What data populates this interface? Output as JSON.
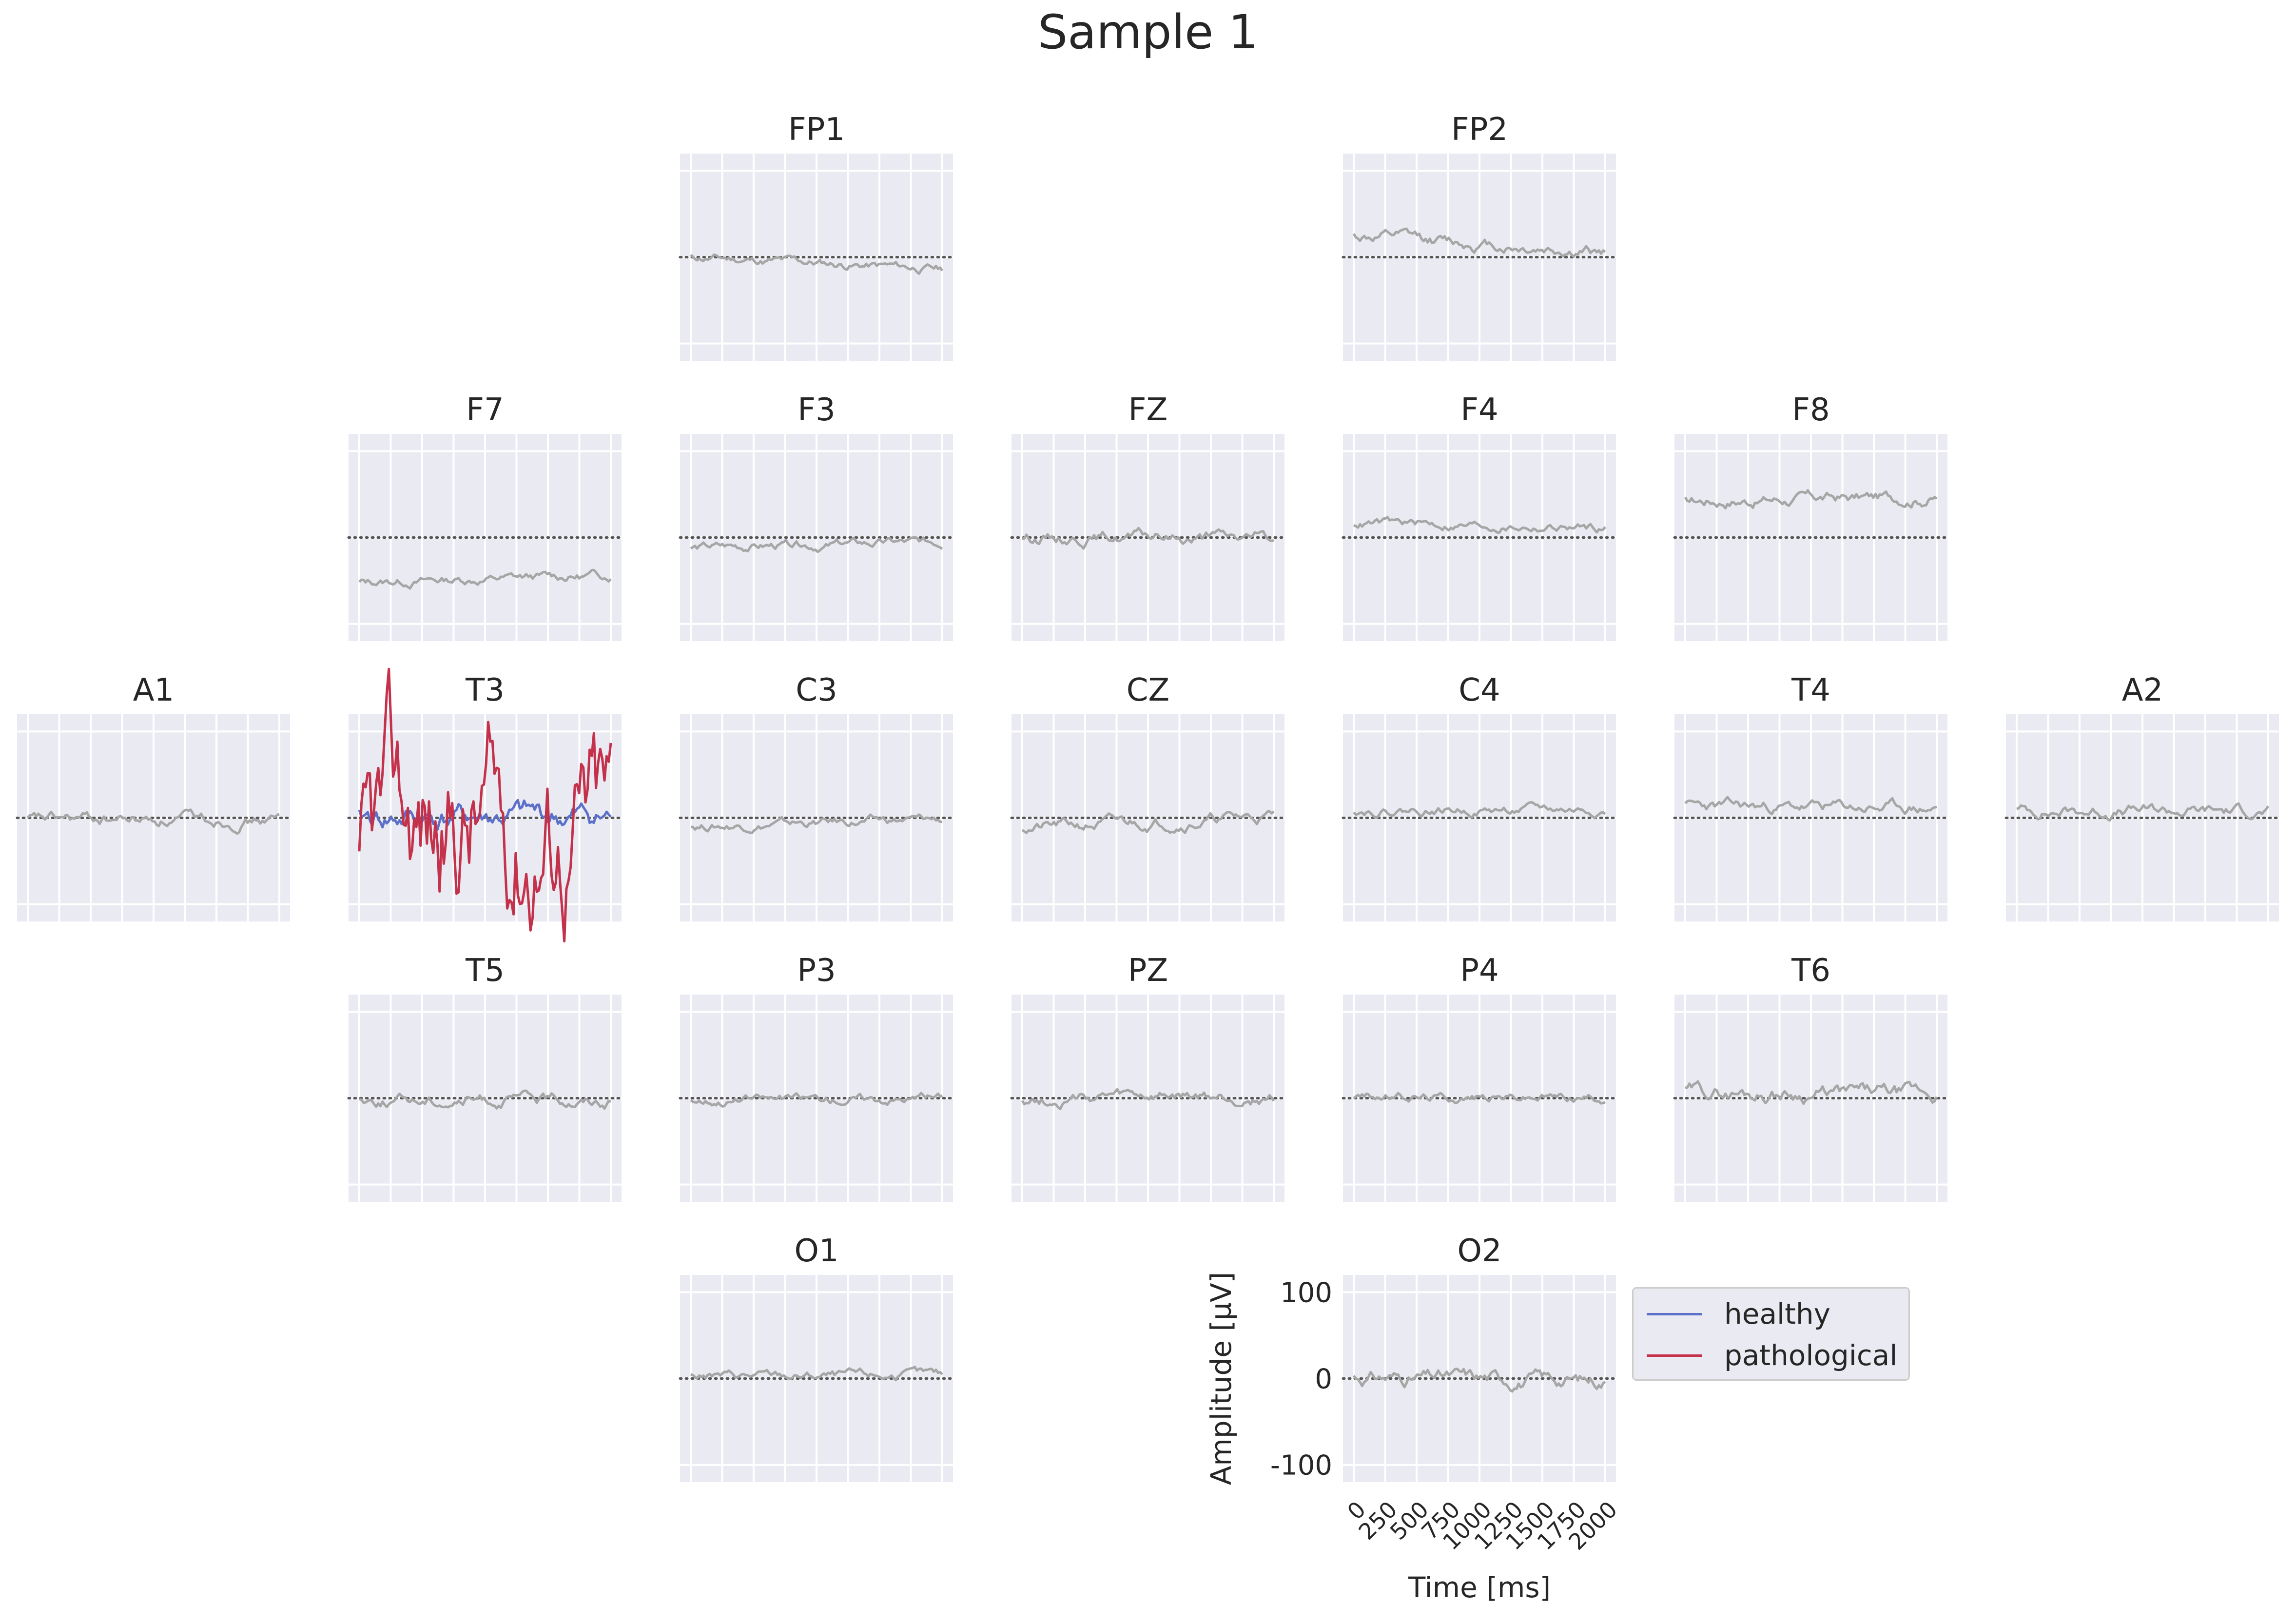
{
  "title": "Sample 1",
  "colors": {
    "axes_bg": "#eaeaf2",
    "grid": "#ffffff",
    "trace": "#a6a6a6",
    "healthy": "#5c70c9",
    "pathological": "#c4314b",
    "zero_line": "#555555"
  },
  "legend": [
    {
      "label": "healthy",
      "color": "#5c70c9"
    },
    {
      "label": "pathological",
      "color": "#c4314b"
    }
  ],
  "chart_data": {
    "type": "line",
    "xlabel": "Time [ms]",
    "ylabel": "Amplitude [µV]",
    "xlim": [
      0,
      2000
    ],
    "ylim": [
      -120,
      120
    ],
    "xticks": [
      0,
      250,
      500,
      750,
      1000,
      1250,
      1500,
      1750,
      2000
    ],
    "yticks": [
      -100,
      0,
      100
    ],
    "channels": [
      {
        "name": "FP1",
        "offset": 0,
        "amp": 3,
        "trend": -14,
        "seed": 11
      },
      {
        "name": "FP2",
        "offset": 25,
        "amp": 4,
        "trend": -20,
        "seed": 12
      },
      {
        "name": "F7",
        "offset": -52,
        "amp": 3,
        "trend": 8,
        "seed": 13
      },
      {
        "name": "F3",
        "offset": -12,
        "amp": 3,
        "trend": 6,
        "seed": 14
      },
      {
        "name": "FZ",
        "offset": 1,
        "amp": 4,
        "trend": -2,
        "seed": 15
      },
      {
        "name": "F4",
        "offset": 17,
        "amp": 3,
        "trend": -6,
        "seed": 16
      },
      {
        "name": "F8",
        "offset": 43,
        "amp": 4,
        "trend": 4,
        "seed": 17
      },
      {
        "name": "A1",
        "offset": -2,
        "amp": 4,
        "trend": 0,
        "seed": 18
      },
      {
        "name": "T3",
        "offset": 0,
        "amp": 3,
        "trend": 0,
        "seed": 19
      },
      {
        "name": "C3",
        "offset": -10,
        "amp": 3,
        "trend": 8,
        "seed": 20
      },
      {
        "name": "CZ",
        "offset": -12,
        "amp": 4,
        "trend": 14,
        "seed": 21
      },
      {
        "name": "C4",
        "offset": 9,
        "amp": 3,
        "trend": 0,
        "seed": 22
      },
      {
        "name": "T4",
        "offset": 13,
        "amp": 4,
        "trend": -2,
        "seed": 23
      },
      {
        "name": "A2",
        "offset": 8,
        "amp": 4,
        "trend": 0,
        "seed": 24
      },
      {
        "name": "T5",
        "offset": -2,
        "amp": 4,
        "trend": 0,
        "seed": 25
      },
      {
        "name": "P3",
        "offset": -2,
        "amp": 3,
        "trend": 3,
        "seed": 26
      },
      {
        "name": "PZ",
        "offset": -1,
        "amp": 4,
        "trend": 1,
        "seed": 27
      },
      {
        "name": "P4",
        "offset": 2,
        "amp": 3,
        "trend": 0,
        "seed": 28
      },
      {
        "name": "T6",
        "offset": 7,
        "amp": 5,
        "trend": -3,
        "seed": 29
      },
      {
        "name": "O1",
        "offset": 3,
        "amp": 3,
        "trend": 0,
        "seed": 30
      },
      {
        "name": "O2",
        "offset": 2,
        "amp": 5,
        "trend": -4,
        "seed": 31
      }
    ],
    "highlight": {
      "channel": "T3",
      "series": [
        {
          "name": "healthy",
          "mean": 0,
          "amp": 12,
          "seed": 41
        },
        {
          "name": "pathological",
          "mean": -10,
          "amp": 38,
          "seed": 42
        }
      ]
    }
  }
}
